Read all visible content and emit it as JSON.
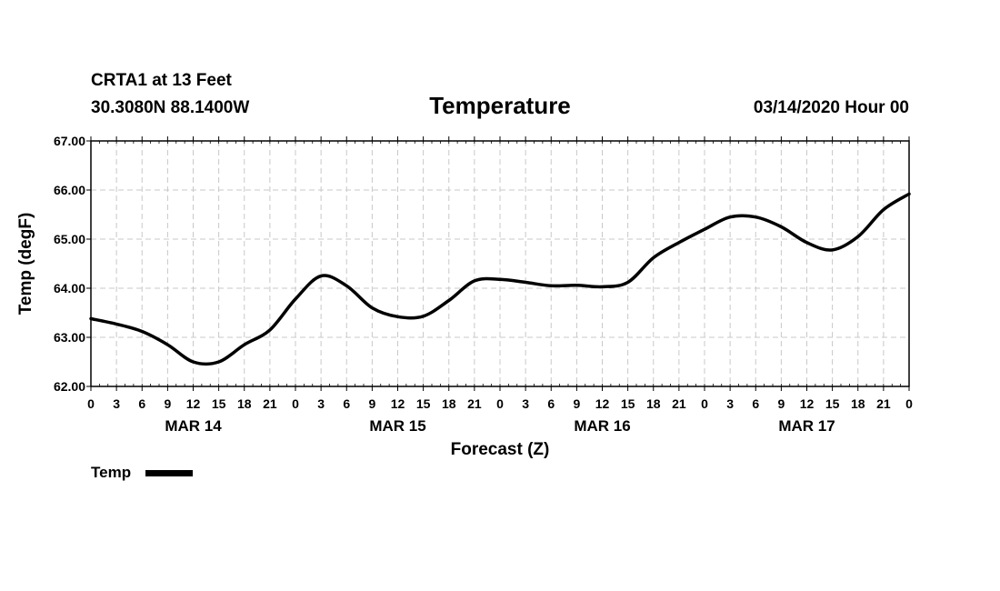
{
  "header": {
    "station": "CRTA1 at 13 Feet",
    "location": "30.3080N 88.1400W",
    "title": "Temperature",
    "issued": "03/14/2020 Hour 00"
  },
  "chart_data": {
    "type": "line",
    "title": "Temperature",
    "xlabel": "Forecast (Z)",
    "ylabel": "Temp (degF)",
    "ylim": [
      62.0,
      67.0
    ],
    "y_ticks": [
      "62.00",
      "63.00",
      "64.00",
      "65.00",
      "66.00",
      "67.00"
    ],
    "x_range_hours": [
      0,
      96
    ],
    "x_tick_labels": [
      "0",
      "3",
      "6",
      "9",
      "12",
      "15",
      "18",
      "21",
      "0",
      "3",
      "6",
      "9",
      "12",
      "15",
      "18",
      "21",
      "0",
      "3",
      "6",
      "9",
      "12",
      "15",
      "18",
      "21",
      "0",
      "3",
      "6",
      "9",
      "12",
      "15",
      "18",
      "21",
      "0"
    ],
    "day_labels": [
      {
        "label": "MAR 14",
        "hour": 12
      },
      {
        "label": "MAR 15",
        "hour": 36
      },
      {
        "label": "MAR 16",
        "hour": 60
      },
      {
        "label": "MAR 17",
        "hour": 84
      }
    ],
    "grid": true,
    "legend_position": "bottom-left",
    "series": [
      {
        "name": "Temp",
        "color": "#000000",
        "x": [
          0,
          3,
          6,
          9,
          12,
          15,
          18,
          21,
          24,
          27,
          30,
          33,
          36,
          39,
          42,
          45,
          48,
          51,
          54,
          57,
          60,
          63,
          66,
          69,
          72,
          75,
          78,
          81,
          84,
          87,
          90,
          93,
          96
        ],
        "values": [
          63.38,
          63.27,
          63.12,
          62.85,
          62.5,
          62.5,
          62.85,
          63.15,
          63.78,
          64.25,
          64.05,
          63.6,
          63.42,
          63.43,
          63.75,
          64.15,
          64.18,
          64.12,
          64.05,
          64.06,
          64.03,
          64.12,
          64.62,
          64.93,
          65.2,
          65.45,
          65.45,
          65.25,
          64.93,
          64.78,
          65.05,
          65.6,
          65.92
        ]
      }
    ]
  },
  "legend": {
    "label": "Temp"
  }
}
